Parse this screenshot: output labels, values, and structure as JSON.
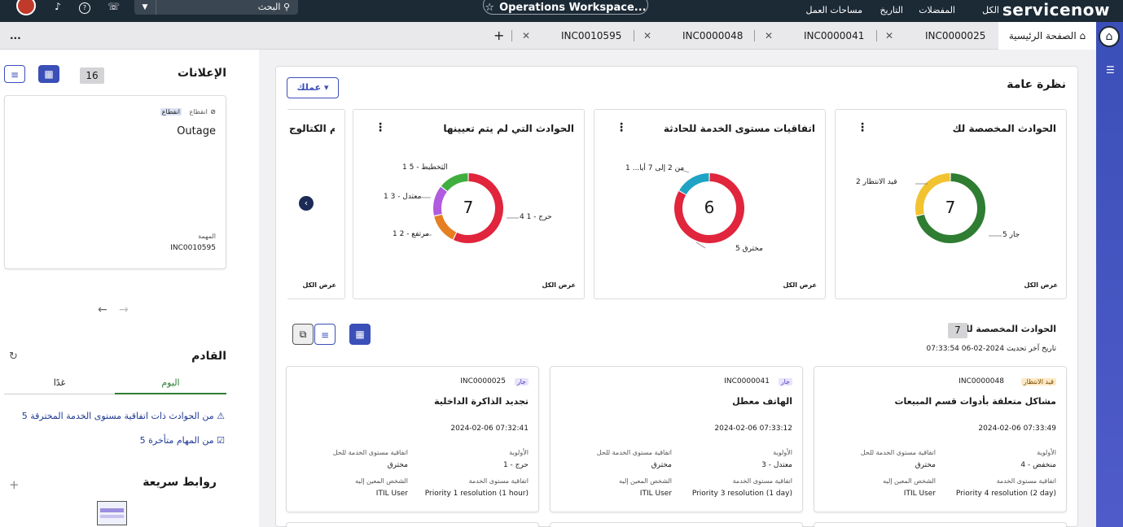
{
  "topbar": {
    "brand": "servicenow",
    "nav_all": "الكل",
    "nav_favorites": "المفضلات",
    "nav_history": "التاريخ",
    "nav_workspaces": "مساحات العمل",
    "workspace": "Operations Workspace...",
    "search_placeholder": "البحث"
  },
  "tabs": {
    "home": "الصفحة الرئيسية",
    "items": [
      "INC0000025",
      "INC0000041",
      "INC0000048",
      "INC0010595"
    ],
    "more": "..."
  },
  "announcements": {
    "title": "الإعلانات",
    "count": "16",
    "card": {
      "tag": "انقطاع",
      "type_label": "انقطاع",
      "title": "Outage",
      "task_label": "المهمة",
      "task": "INC0010595"
    }
  },
  "upcoming": {
    "title": "القادم",
    "tab_today": "اليوم",
    "tab_tomorrow": "غدًا",
    "item1": "5 من الحوادث ذات اتفاقية مستوى الخدمة المخترقة",
    "item2": "5 من المهام متأخرة"
  },
  "quick_links": {
    "title": "روابط سريعة"
  },
  "overview": {
    "title": "نظرة عامة",
    "action_button": "عملك",
    "view_all": "عرض الكل",
    "widget4_title": "مهام الكتالوج",
    "widgets": [
      {
        "title": "الحوادث المخصصة لك",
        "total": "7",
        "labels": [
          "5 جار",
          "2 قيد الانتظار"
        ]
      },
      {
        "title": "اتفاقيات مستوى الخدمة للحادثة",
        "total": "6",
        "labels": [
          "5 مخترق",
          "1 ...من 2 إلى 7 أيا"
        ]
      },
      {
        "title": "الحوادث التي لم يتم تعيينها",
        "total": "7",
        "labels": [
          "4 حرج - 1",
          "1 مرتفع - 2",
          "1 معتدل - 3",
          "1 التخطيط - 5"
        ]
      }
    ]
  },
  "chart_data": [
    {
      "type": "pie",
      "title": "الحوادث المخصصة لك",
      "categories": [
        "جار",
        "قيد الانتظار"
      ],
      "values": [
        5,
        2
      ],
      "colors": [
        "#2e7d32",
        "#f2c230"
      ],
      "total": 7
    },
    {
      "type": "pie",
      "title": "اتفاقيات مستوى الخدمة للحادثة",
      "categories": [
        "مخترق",
        "...من 2 إلى 7 أيا"
      ],
      "values": [
        5,
        1
      ],
      "colors": [
        "#e0253c",
        "#1fa3c4"
      ],
      "total": 6
    },
    {
      "type": "pie",
      "title": "الحوادث التي لم يتم تعيينها",
      "categories": [
        "حرج - 1",
        "مرتفع - 2",
        "معتدل - 3",
        "التخطيط - 5"
      ],
      "values": [
        4,
        1,
        1,
        1
      ],
      "colors": [
        "#e0253c",
        "#e67e22",
        "#b05be0",
        "#3fae3f"
      ],
      "total": 7
    }
  ],
  "assigned": {
    "title": "الحوادث المخصصة لك",
    "count": "7",
    "updated": "تاريخ آخر تحديث 2024-02-06 07:33:54",
    "labels": {
      "priority": "الأولوية",
      "sla_resolution": "اتفاقية مستوى الخدمة للحل",
      "sla": "اتفاقية مستوى الخدمة",
      "assigned_to": "الشخص المعين إليه"
    },
    "cards": [
      {
        "number": "INC0000048",
        "state": "قيد الانتظار",
        "title": "مشاكل متعلقة بأدوات قسم المبيعات",
        "date": "2024-02-06 07:33:49",
        "priority": "4 - منخفض",
        "sla_state": "مخترق",
        "sla": "Priority 4 resolution (2 day)",
        "assignee": "ITIL User"
      },
      {
        "number": "INC0000041",
        "state": "جار",
        "title": "الهاتف معطل",
        "date": "2024-02-06 07:33:12",
        "priority": "3 - معتدل",
        "sla_state": "مخترق",
        "sla": "Priority 3 resolution (1 day)",
        "assignee": "ITIL User"
      },
      {
        "number": "INC0000025",
        "state": "جار",
        "title": "تجديد الذاكرة الداخلية",
        "date": "2024-02-06 07:32:41",
        "priority": "1 - حرج",
        "sla_state": "مخترق",
        "sla": "Priority 1 resolution (1 hour)",
        "assignee": "ITIL User"
      }
    ]
  }
}
